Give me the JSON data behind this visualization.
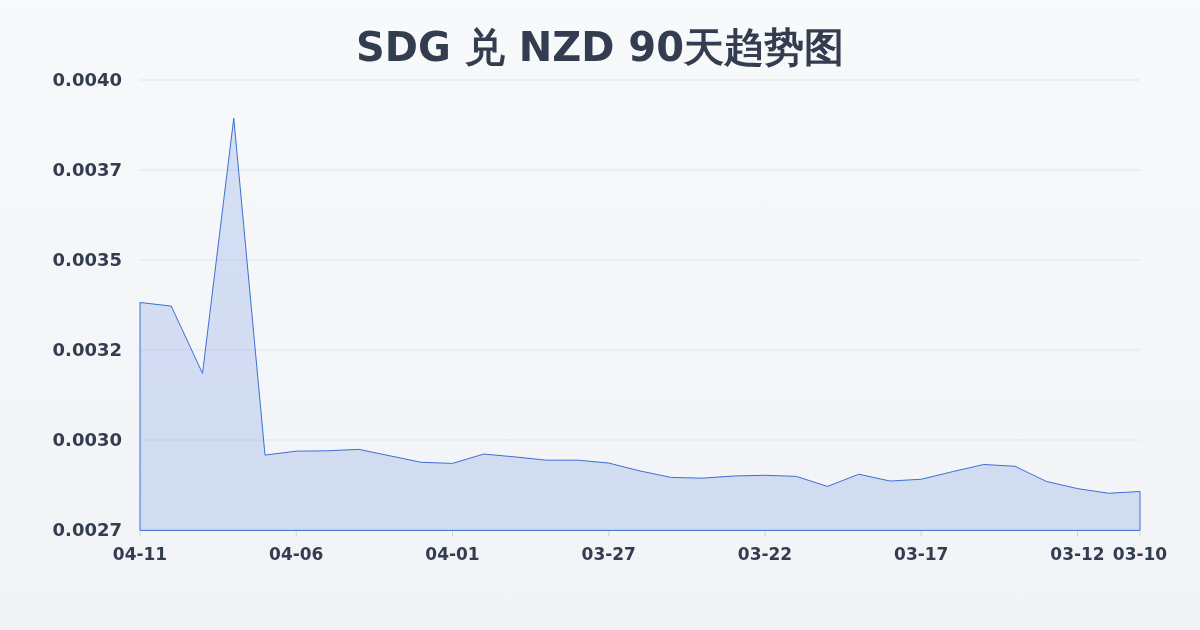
{
  "chart_data": {
    "type": "area",
    "title": "SDG 兑 NZD 90天趋势图",
    "categories": [
      "04-11",
      null,
      null,
      null,
      null,
      "04-06",
      null,
      null,
      null,
      null,
      "04-01",
      null,
      null,
      null,
      null,
      "03-27",
      null,
      null,
      null,
      null,
      "03-22",
      null,
      null,
      null,
      null,
      "03-17",
      null,
      null,
      null,
      null,
      "03-12",
      null,
      "03-10"
    ],
    "color": "#3d6fd6",
    "values": [
      0.003382,
      0.003372,
      0.003185,
      0.003894,
      0.002958,
      0.002969,
      0.00297,
      0.002974,
      0.002956,
      0.002938,
      0.002935,
      0.002961,
      0.002953,
      0.002944,
      0.002944,
      0.002936,
      0.002914,
      0.002896,
      0.002894,
      0.0029,
      0.002902,
      0.002899,
      0.002871,
      0.002905,
      0.002886,
      0.002891,
      0.002912,
      0.002932,
      0.002927,
      0.002885,
      0.002865,
      0.002852,
      0.002857
    ],
    "ylim": [
      0.00275,
      0.004
    ],
    "yticks": [
      {
        "value": 0.00275,
        "label": "0.0027"
      },
      {
        "value": 0.003,
        "label": "0.0030"
      },
      {
        "value": 0.00325,
        "label": "0.0032"
      },
      {
        "value": 0.0035,
        "label": "0.0035"
      },
      {
        "value": 0.00375,
        "label": "0.0037"
      },
      {
        "value": 0.004,
        "label": "0.0040"
      }
    ],
    "grid": "y"
  }
}
